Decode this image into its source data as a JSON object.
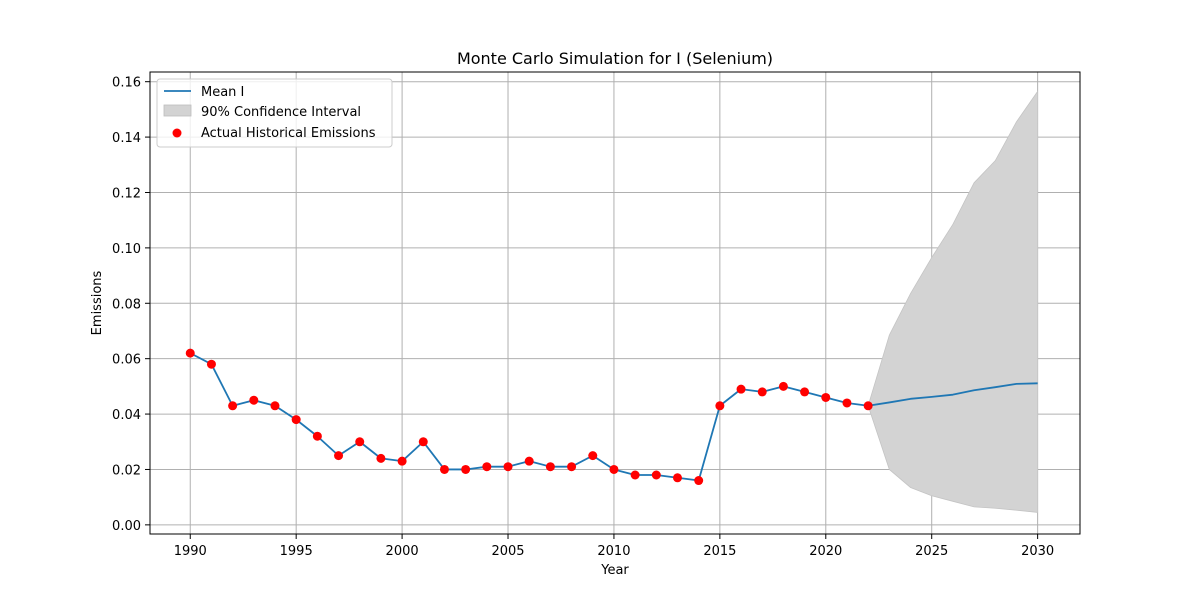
{
  "chart_data": {
    "type": "line",
    "title": "Monte Carlo Simulation for I (Selenium)",
    "xlabel": "Year",
    "ylabel": "Emissions",
    "xlim": [
      1988.1,
      2032
    ],
    "ylim": [
      -0.0033,
      0.1635
    ],
    "x_ticks": [
      1990,
      1995,
      2000,
      2005,
      2010,
      2015,
      2020,
      2025,
      2030
    ],
    "x_tick_labels": [
      "1990",
      "1995",
      "2000",
      "2005",
      "2010",
      "2015",
      "2020",
      "2025",
      "2030"
    ],
    "y_ticks": [
      0.0,
      0.02,
      0.04,
      0.06,
      0.08,
      0.1,
      0.12,
      0.14,
      0.16
    ],
    "y_tick_labels": [
      "0.00",
      "0.02",
      "0.04",
      "0.06",
      "0.08",
      "0.10",
      "0.12",
      "0.14",
      "0.16"
    ],
    "grid": true,
    "legend_position": "top-left",
    "series": [
      {
        "name": "Mean I",
        "kind": "line",
        "color": "#1f77b4",
        "x": [
          1990,
          1991,
          1992,
          1993,
          1994,
          1995,
          1996,
          1997,
          1998,
          1999,
          2000,
          2001,
          2002,
          2003,
          2004,
          2005,
          2006,
          2007,
          2008,
          2009,
          2010,
          2011,
          2012,
          2013,
          2014,
          2015,
          2016,
          2017,
          2018,
          2019,
          2020,
          2021,
          2022,
          2023,
          2024,
          2025,
          2026,
          2027,
          2028,
          2029,
          2030
        ],
        "y": [
          0.062,
          0.058,
          0.043,
          0.045,
          0.043,
          0.038,
          0.032,
          0.025,
          0.03,
          0.024,
          0.023,
          0.03,
          0.02,
          0.02,
          0.021,
          0.021,
          0.023,
          0.021,
          0.021,
          0.025,
          0.02,
          0.018,
          0.018,
          0.017,
          0.016,
          0.043,
          0.049,
          0.048,
          0.05,
          0.048,
          0.046,
          0.044,
          0.043,
          0.0442,
          0.0455,
          0.0462,
          0.047,
          0.0486,
          0.0497,
          0.0509,
          0.0511
        ]
      },
      {
        "name": "90% Confidence Interval",
        "kind": "band",
        "color": "#d3d3d3",
        "x": [
          2022,
          2023,
          2024,
          2025,
          2026,
          2027,
          2028,
          2029,
          2030
        ],
        "lower": [
          0.043,
          0.02,
          0.0135,
          0.0105,
          0.0085,
          0.0065,
          0.006,
          0.0053,
          0.0045
        ],
        "upper": [
          0.043,
          0.0685,
          0.0835,
          0.0965,
          0.1085,
          0.1235,
          0.1315,
          0.1455,
          0.1565
        ]
      },
      {
        "name": "Actual Historical Emissions",
        "kind": "scatter",
        "color": "#ff0000",
        "x": [
          1990,
          1991,
          1992,
          1993,
          1994,
          1995,
          1996,
          1997,
          1998,
          1999,
          2000,
          2001,
          2002,
          2003,
          2004,
          2005,
          2006,
          2007,
          2008,
          2009,
          2010,
          2011,
          2012,
          2013,
          2014,
          2015,
          2016,
          2017,
          2018,
          2019,
          2020,
          2021,
          2022
        ],
        "y": [
          0.062,
          0.058,
          0.043,
          0.045,
          0.043,
          0.038,
          0.032,
          0.025,
          0.03,
          0.024,
          0.023,
          0.03,
          0.02,
          0.02,
          0.021,
          0.021,
          0.023,
          0.021,
          0.021,
          0.025,
          0.02,
          0.018,
          0.018,
          0.017,
          0.016,
          0.043,
          0.049,
          0.048,
          0.05,
          0.048,
          0.046,
          0.044,
          0.043
        ]
      }
    ]
  }
}
